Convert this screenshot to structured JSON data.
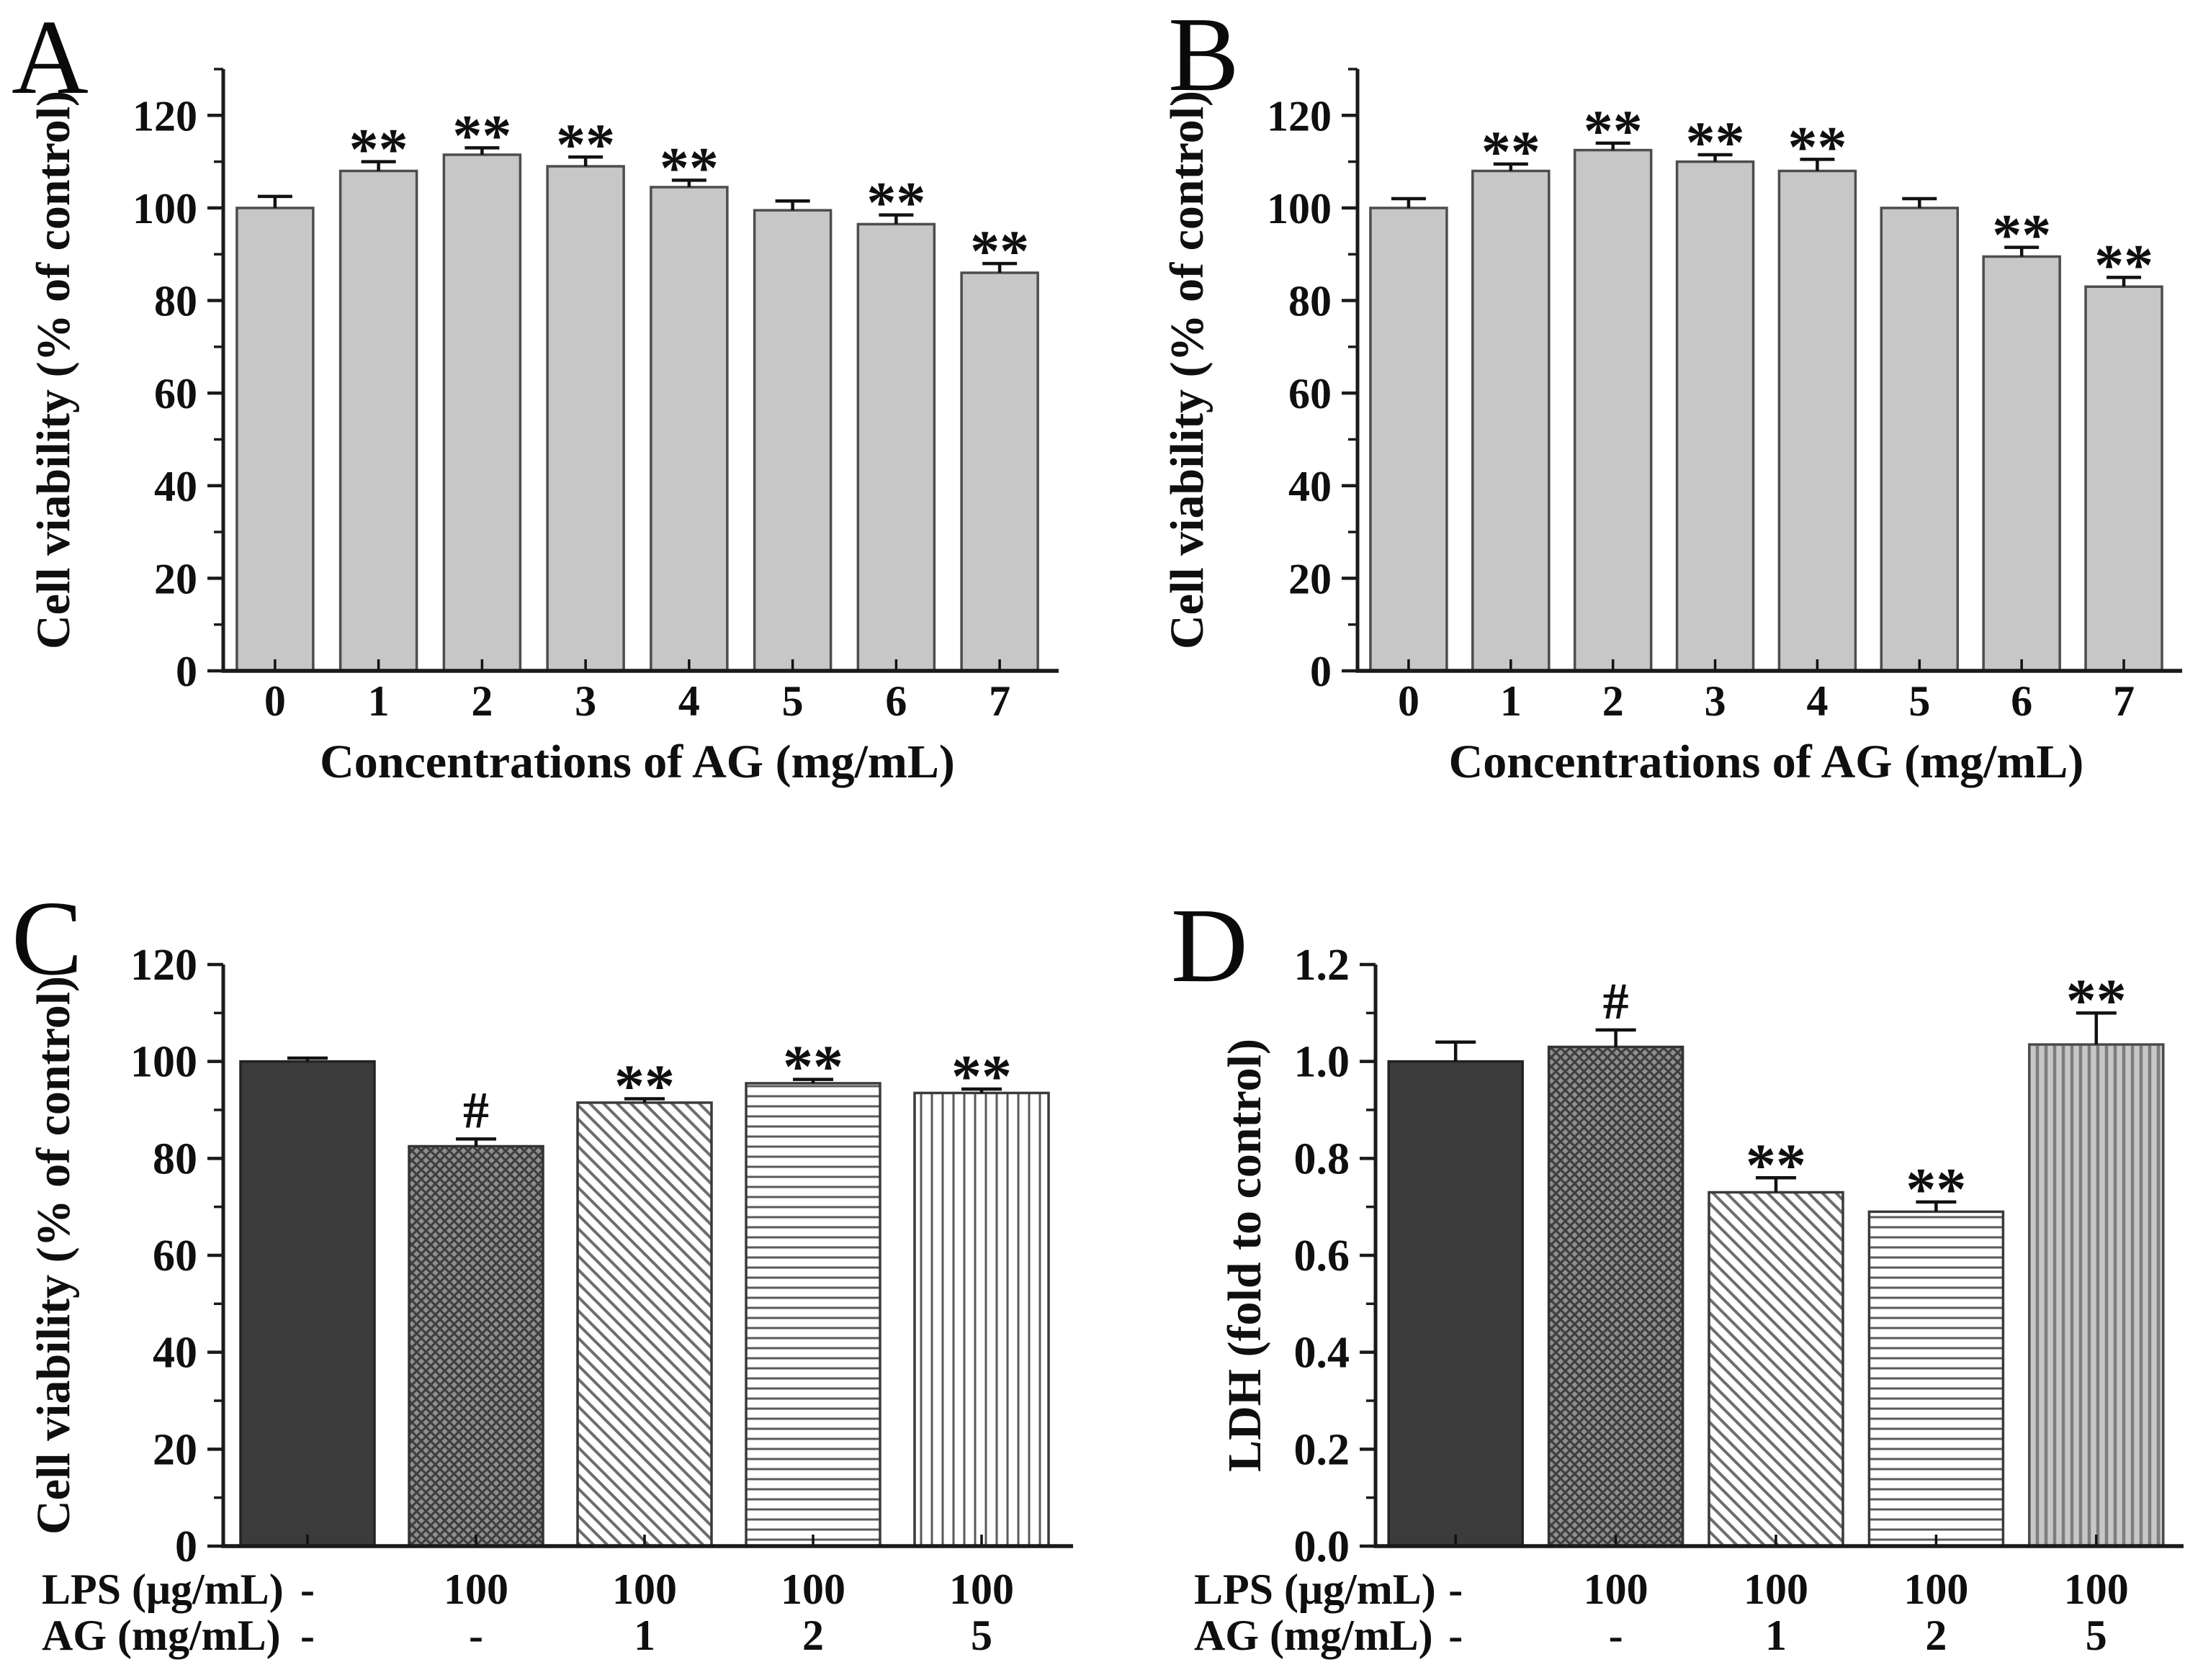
{
  "figure": {
    "background": "#ffffff",
    "text_color": "#0f0f0f",
    "axis_color": "#1a1a1a",
    "bar_fill_plain": "#c7c7c7",
    "bar_fill_dark": "#3b3b3b",
    "bar_fill_crosshatch_bg": "#8f8f8f",
    "bar_fill_vertgray_bg": "#c7c7c7"
  },
  "chart_data": [
    {
      "type": "bar",
      "panel_label": "A",
      "title": "",
      "categories": [
        "0",
        "1",
        "2",
        "3",
        "4",
        "5",
        "6",
        "7"
      ],
      "values": [
        100,
        108,
        111.5,
        109,
        104.5,
        99.5,
        96.5,
        86
      ],
      "errors": [
        2.5,
        2,
        1.5,
        2,
        1.5,
        2,
        2,
        2
      ],
      "annotations": [
        "",
        "**",
        "**",
        "**",
        "**",
        "",
        "**",
        "**"
      ],
      "xlabel": "Concentrations of AG (mg/mL)",
      "ylabel": "Cell viability (% of control)",
      "ylim": [
        0,
        130
      ],
      "yticks": [
        0,
        20,
        40,
        60,
        80,
        100,
        120
      ],
      "ytick_labels": [
        "0",
        "20",
        "40",
        "60",
        "80",
        "100",
        "120"
      ],
      "minor_step": 10,
      "grid": false,
      "legend": null,
      "bar_styles": [
        "plain",
        "plain",
        "plain",
        "plain",
        "plain",
        "plain",
        "plain",
        "plain"
      ]
    },
    {
      "type": "bar",
      "panel_label": "B",
      "title": "",
      "categories": [
        "0",
        "1",
        "2",
        "3",
        "4",
        "5",
        "6",
        "7"
      ],
      "values": [
        100,
        108,
        112.5,
        110,
        108,
        100,
        89.5,
        83
      ],
      "errors": [
        2,
        1.5,
        1.5,
        1.5,
        2.5,
        2,
        2,
        2
      ],
      "annotations": [
        "",
        "**",
        "**",
        "**",
        "**",
        "",
        "**",
        "**"
      ],
      "xlabel": "Concentrations of AG (mg/mL)",
      "ylabel": "Cell viability (% of control)",
      "ylim": [
        0,
        130
      ],
      "yticks": [
        0,
        20,
        40,
        60,
        80,
        100,
        120
      ],
      "ytick_labels": [
        "0",
        "20",
        "40",
        "60",
        "80",
        "100",
        "120"
      ],
      "minor_step": 10,
      "grid": false,
      "legend": null,
      "bar_styles": [
        "plain",
        "plain",
        "plain",
        "plain",
        "plain",
        "plain",
        "plain",
        "plain"
      ]
    },
    {
      "type": "bar",
      "panel_label": "C",
      "title": "",
      "group_rows": {
        "row_labels": [
          "LPS (μg/mL)",
          "AG (mg/mL)"
        ],
        "rows": [
          [
            "-",
            "100",
            "100",
            "100",
            "100"
          ],
          [
            "-",
            "-",
            "1",
            "2",
            "5"
          ]
        ]
      },
      "values": [
        100,
        82.5,
        91.5,
        95.5,
        93.5
      ],
      "errors": [
        0.7,
        1.5,
        0.8,
        0.8,
        0.8
      ],
      "annotations": [
        "",
        "#",
        "**",
        "**",
        "**"
      ],
      "xlabel": "",
      "ylabel": "Cell viability (% of control)",
      "ylim": [
        0,
        120
      ],
      "yticks": [
        0,
        20,
        40,
        60,
        80,
        100,
        120
      ],
      "ytick_labels": [
        "0",
        "20",
        "40",
        "60",
        "80",
        "100",
        "120"
      ],
      "minor_step": 10,
      "grid": false,
      "legend": null,
      "bar_styles": [
        "solid-dark",
        "crosshatch",
        "diag-hatch",
        "horiz-lines",
        "vert-lines"
      ]
    },
    {
      "type": "bar",
      "panel_label": "D",
      "title": "",
      "group_rows": {
        "row_labels": [
          "LPS (μg/mL)",
          "AG (mg/mL)"
        ],
        "rows": [
          [
            "-",
            "100",
            "100",
            "100",
            "100"
          ],
          [
            "-",
            "-",
            "1",
            "2",
            "5"
          ]
        ]
      },
      "values": [
        1.0,
        1.03,
        0.73,
        0.69,
        1.035
      ],
      "errors": [
        0.04,
        0.035,
        0.03,
        0.02,
        0.065
      ],
      "annotations": [
        "",
        "#",
        "**",
        "**",
        "**"
      ],
      "xlabel": "",
      "ylabel": "LDH (fold to control)",
      "ylim": [
        0,
        1.2
      ],
      "yticks": [
        0,
        0.2,
        0.4,
        0.6,
        0.8,
        1.0,
        1.2
      ],
      "ytick_labels": [
        "0.0",
        "0.2",
        "0.4",
        "0.6",
        "0.8",
        "1.0",
        "1.2"
      ],
      "minor_step": 0.1,
      "grid": false,
      "legend": null,
      "bar_styles": [
        "solid-dark",
        "crosshatch",
        "diag-hatch",
        "horiz-lines",
        "vert-lines-gray"
      ]
    }
  ]
}
